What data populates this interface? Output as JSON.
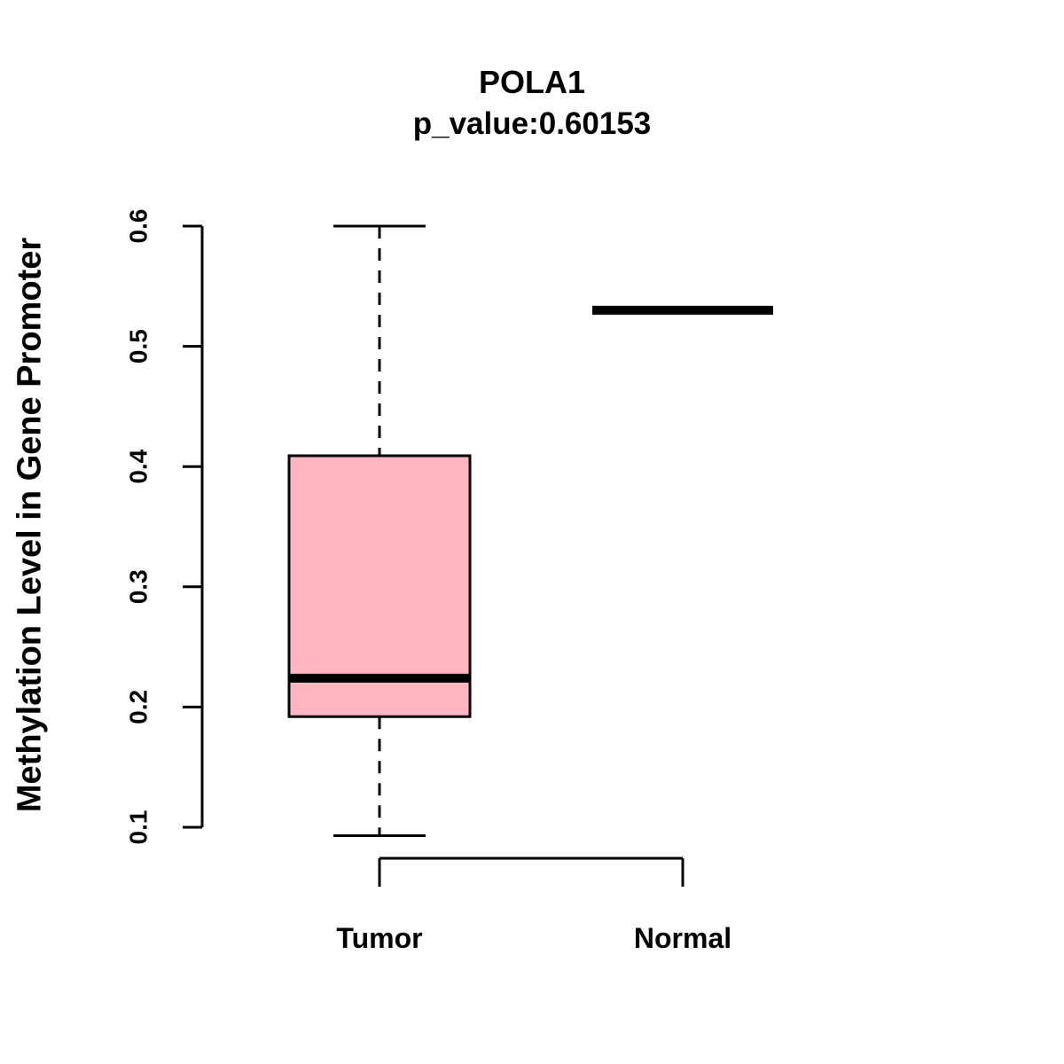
{
  "chart_data": {
    "type": "boxplot",
    "title": "POLA1",
    "subtitle": "p_value:0.60153",
    "ylabel": "Methylation Level in Gene Promoter",
    "xlabel": "",
    "categories": [
      "Tumor",
      "Normal"
    ],
    "ylim": [
      0.1,
      0.6
    ],
    "yticks": [
      0.1,
      0.2,
      0.3,
      0.4,
      0.5,
      0.6
    ],
    "series": [
      {
        "name": "Tumor",
        "lower_whisker": 0.093,
        "q1": 0.192,
        "median": 0.224,
        "q3": 0.409,
        "upper_whisker": 0.6
      },
      {
        "name": "Normal",
        "lower_whisker": 0.53,
        "q1": 0.53,
        "median": 0.53,
        "q3": 0.53,
        "upper_whisker": 0.53
      }
    ],
    "box_fill": "#FFB6C1",
    "box_stroke": "#000000",
    "grid": false,
    "legend": "none"
  }
}
